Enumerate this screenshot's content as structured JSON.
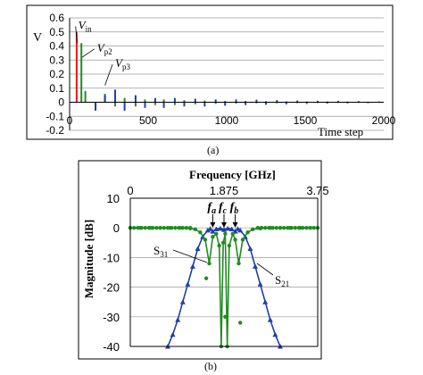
{
  "chart_data": [
    {
      "type": "bar",
      "panel_caption": "(a)",
      "ylabel": "V",
      "xlabel": "Time step",
      "xlim": [
        0,
        2000
      ],
      "ylim": [
        -0.2,
        0.6
      ],
      "x_ticks": [
        "0",
        "500",
        "1000",
        "1500",
        "2000"
      ],
      "y_ticks": [
        "0.6",
        "0.5",
        "0.4",
        "0.3",
        "0.2",
        "0.1",
        "0",
        "-0.1",
        "-0.2"
      ],
      "grid": "horizontal",
      "series": [
        {
          "color": "#e41a1c",
          "x": [
            45
          ],
          "values": [
            0.5
          ]
        },
        {
          "color": "#228b22",
          "x": [
            75,
            100,
            165,
            225,
            290,
            350,
            420,
            480,
            545,
            600,
            670,
            730,
            800,
            860,
            930,
            990,
            1060,
            1120,
            1190,
            1250,
            1320,
            1380,
            1450,
            1510,
            1580,
            1640,
            1710,
            1770,
            1840,
            1900,
            1970
          ],
          "values": [
            0.42,
            0.08,
            -0.05,
            0.06,
            -0.03,
            0.03,
            -0.03,
            0.02,
            -0.02,
            0.02,
            -0.02,
            0.015,
            -0.015,
            0.012,
            -0.012,
            0.01,
            -0.01,
            0.01,
            -0.008,
            0.008,
            -0.008,
            0.007,
            -0.007,
            0.006,
            -0.006,
            0.006,
            -0.005,
            0.005,
            -0.005,
            0.004,
            -0.004
          ]
        },
        {
          "color": "#1f3fa8",
          "x": [
            165,
            225,
            290,
            350,
            420,
            480,
            545,
            600,
            670,
            730,
            800,
            860,
            930,
            990,
            1060,
            1120,
            1190,
            1250,
            1320,
            1380,
            1450,
            1510,
            1580,
            1640,
            1710,
            1770,
            1840,
            1900,
            1970
          ],
          "values": [
            -0.06,
            0.05,
            0.09,
            -0.06,
            0.05,
            -0.04,
            0.03,
            -0.04,
            0.03,
            -0.03,
            0.025,
            -0.03,
            0.02,
            -0.025,
            0.02,
            -0.02,
            0.018,
            -0.018,
            0.015,
            -0.015,
            0.012,
            -0.012,
            0.01,
            -0.01,
            0.01,
            -0.008,
            0.008,
            -0.007,
            0.006
          ]
        }
      ],
      "annotations": [
        {
          "text": "V",
          "sub": "in",
          "x": 55,
          "y": 0.52
        },
        {
          "text": "V",
          "sub": "p2",
          "x": 175,
          "y": 0.36
        },
        {
          "text": "V",
          "sub": "p3",
          "x": 290,
          "y": 0.25
        }
      ]
    },
    {
      "type": "line",
      "panel_caption": "(b)",
      "xlabel": "Frequency [GHz]",
      "ylabel": "Magnitude [dB]",
      "xlim": [
        0,
        3.75
      ],
      "ylim": [
        -40,
        10
      ],
      "x_ticks": [
        "0",
        "1.875",
        "3.75"
      ],
      "y_ticks": [
        "10",
        "0",
        "-10",
        "-20",
        "-30",
        "-40"
      ],
      "grid": "horizontal",
      "series": [
        {
          "name": "S21",
          "color": "#1f3fa8",
          "marker": "triangle",
          "x": [
            0.75,
            0.85,
            0.95,
            1.05,
            1.15,
            1.25,
            1.35,
            1.45,
            1.55,
            1.6,
            1.65,
            1.72,
            1.8,
            1.875,
            1.95,
            2.03,
            2.1,
            2.15,
            2.2,
            2.3,
            2.4,
            2.5,
            2.6,
            2.7,
            2.8,
            2.9,
            3.0
          ],
          "values": [
            -40,
            -36,
            -31,
            -25,
            -19,
            -13,
            -7,
            -3,
            -0.8,
            -0.3,
            -1.2,
            -0.4,
            -0.2,
            -0.6,
            -0.2,
            -0.4,
            -1.2,
            -0.3,
            -0.8,
            -3,
            -7,
            -13,
            -19,
            -25,
            -31,
            -36,
            -40
          ]
        },
        {
          "name": "S31",
          "color": "#228b22",
          "marker": "circle",
          "x": [
            0,
            0.2,
            0.4,
            0.6,
            0.8,
            1.0,
            1.2,
            1.3,
            1.4,
            1.5,
            1.58,
            1.65,
            1.72,
            1.78,
            1.82,
            1.86,
            1.9,
            1.94,
            1.98,
            2.05,
            2.1,
            2.17,
            2.25,
            2.35,
            2.45,
            2.6,
            2.8,
            3.0,
            3.2,
            3.4,
            3.6,
            3.75
          ],
          "values": [
            0,
            0,
            0,
            0,
            0,
            0,
            -0.2,
            -0.5,
            -1.5,
            -4,
            -12,
            -3,
            -2,
            -6,
            -40,
            -5,
            -2,
            -40,
            -6,
            -2,
            -4,
            -12,
            -4,
            -1.5,
            -0.5,
            -0.2,
            0,
            0,
            0,
            0,
            0,
            0
          ]
        }
      ],
      "markers_labels": [
        {
          "text": "f",
          "sub": "a",
          "x": 1.65
        },
        {
          "text": "f",
          "sub": "c",
          "x": 1.875
        },
        {
          "text": "f",
          "sub": "b",
          "x": 2.1
        }
      ],
      "outliers": [
        {
          "x": 1.52,
          "y": -17
        },
        {
          "x": 1.9,
          "y": -30
        },
        {
          "x": 2.2,
          "y": -32
        }
      ]
    }
  ]
}
